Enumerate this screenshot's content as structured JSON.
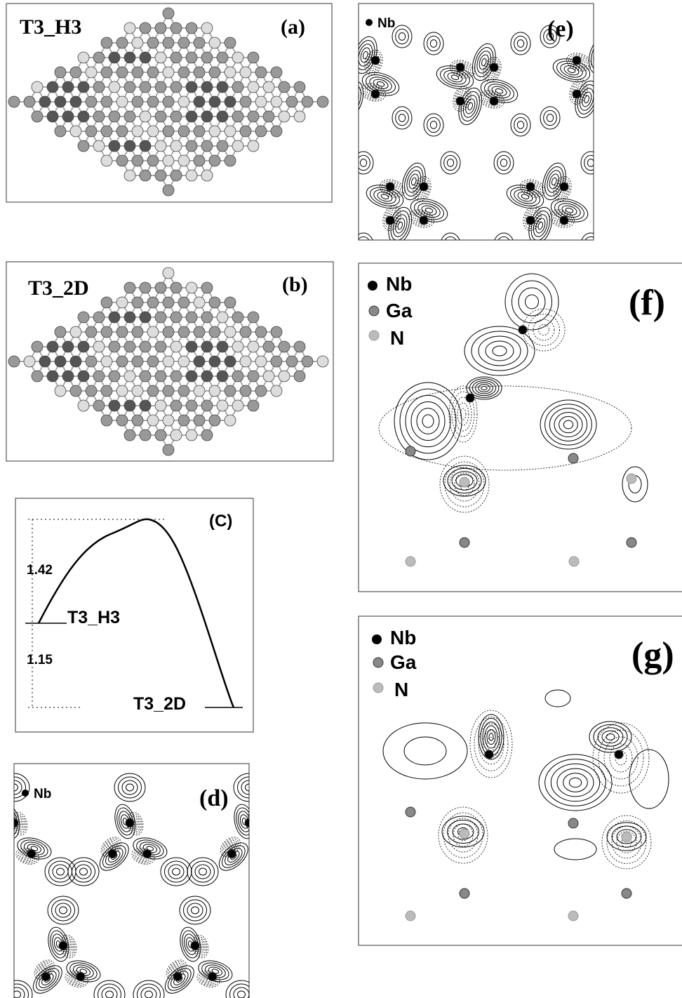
{
  "panels": {
    "a": {
      "label": "(a)",
      "title": "T3_H3"
    },
    "b": {
      "label": "(b)",
      "title": "T3_2D"
    },
    "c": {
      "label": "(C)",
      "barrier": "1.42",
      "reaction": "1.15",
      "start": "T3_H3",
      "end": "T3_2D"
    },
    "d": {
      "label": "(d)",
      "legend": [
        "Nb"
      ]
    },
    "e": {
      "label": "(e)",
      "legend": [
        "Nb"
      ]
    },
    "f": {
      "label": "(f)",
      "legend": [
        "Nb",
        "Ga",
        "N"
      ]
    },
    "g": {
      "label": "(g)",
      "legend": [
        "Nb",
        "Ga",
        "N"
      ]
    }
  }
}
